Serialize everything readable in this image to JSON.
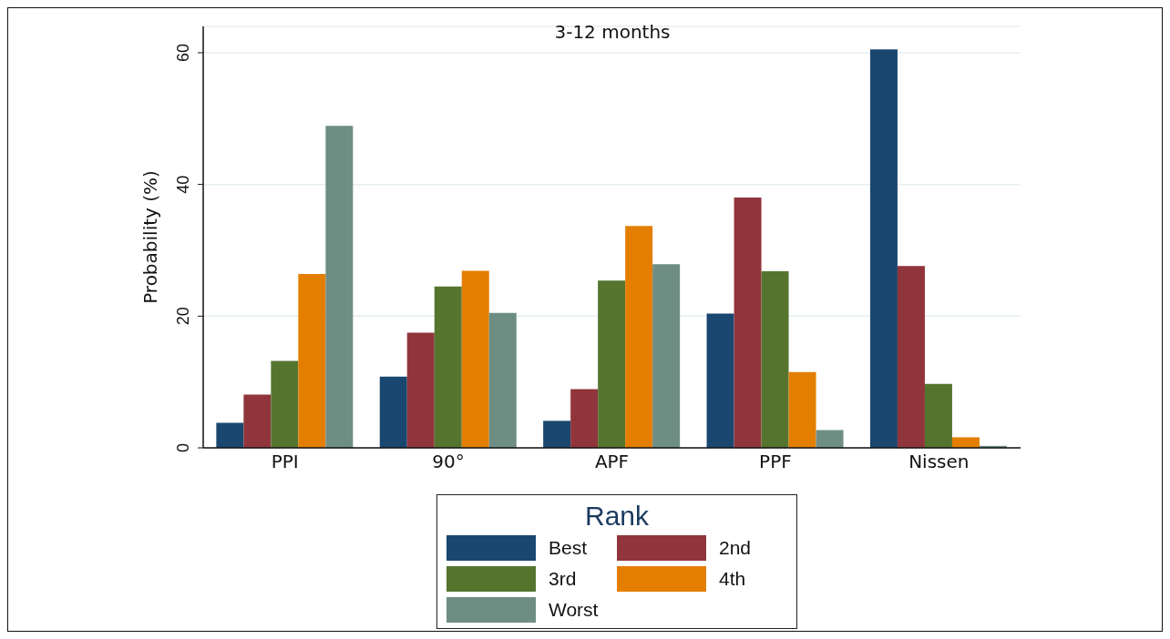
{
  "chart_data": {
    "type": "bar",
    "title": "3-12 months",
    "ylabel": "Probability (%)",
    "legend_title": "Rank",
    "categories": [
      "PPI",
      "90°",
      "APF",
      "PPF",
      "Nissen"
    ],
    "series": [
      {
        "name": "Best",
        "color": "#1a476f",
        "values": [
          3.8,
          10.8,
          4.1,
          20.4,
          60.5
        ]
      },
      {
        "name": "2nd",
        "color": "#90353b",
        "values": [
          8.1,
          17.5,
          8.9,
          38.0,
          27.6
        ]
      },
      {
        "name": "3rd",
        "color": "#55752f",
        "values": [
          13.2,
          24.5,
          25.4,
          26.8,
          9.7
        ]
      },
      {
        "name": "4th",
        "color": "#e37e00",
        "values": [
          26.4,
          26.9,
          33.7,
          11.5,
          1.6
        ]
      },
      {
        "name": "Worst",
        "color": "#6e8e84",
        "values": [
          48.9,
          20.5,
          27.9,
          2.7,
          0.3
        ]
      }
    ],
    "ylim": [
      0,
      64
    ],
    "yticks": [
      0,
      20,
      40,
      60
    ],
    "grid": "y",
    "legend": "bottom"
  }
}
